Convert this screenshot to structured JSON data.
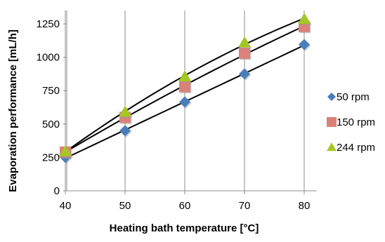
{
  "chart_data": {
    "type": "scatter",
    "title": "",
    "xlabel": "Heating bath temperature [°C]",
    "ylabel": "Evaporation performance [mL/h]",
    "xlim": [
      38,
      82
    ],
    "ylim": [
      0,
      1350
    ],
    "x_ticks": [
      40,
      50,
      60,
      70,
      80
    ],
    "y_ticks": [
      0,
      250,
      500,
      750,
      1000,
      1250
    ],
    "x_tick_labels": [
      "40",
      "50",
      "60",
      "70",
      "80"
    ],
    "y_tick_labels": [
      "0",
      "250",
      "500",
      "750",
      "1000",
      "1250"
    ],
    "grid": "vertical",
    "legend_position": "right",
    "x": [
      40,
      50,
      60,
      70,
      80
    ],
    "series": [
      {
        "name": "50 rpm",
        "marker": "diamond",
        "color": "#4a7ebb",
        "values": [
          250,
          450,
          665,
          875,
          1095
        ],
        "trendline": "linear"
      },
      {
        "name": "150 rpm",
        "marker": "square",
        "color": "#d9817a",
        "values": [
          290,
          550,
          780,
          1030,
          1230
        ],
        "trendline": "curved"
      },
      {
        "name": "244 rpm",
        "marker": "triangle",
        "color": "#a5c722",
        "values": [
          295,
          590,
          855,
          1110,
          1285
        ],
        "trendline": "curved"
      }
    ],
    "trendline_color": "#000000"
  }
}
